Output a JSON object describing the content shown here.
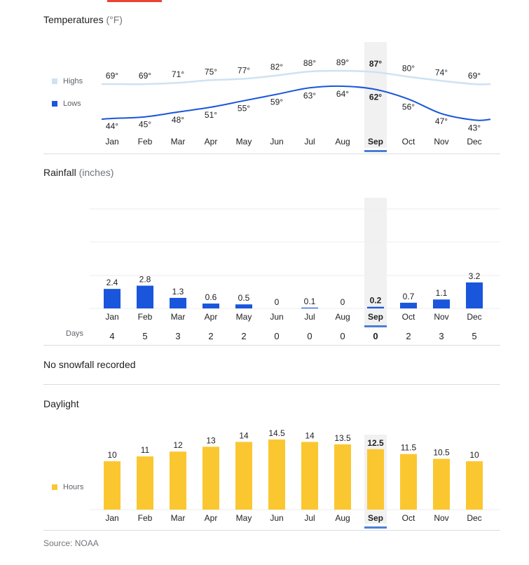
{
  "months": [
    "Jan",
    "Feb",
    "Mar",
    "Apr",
    "May",
    "Jun",
    "Jul",
    "Aug",
    "Sep",
    "Oct",
    "Nov",
    "Dec"
  ],
  "selected_month": "Sep",
  "colors": {
    "highs": "#cfe2f3",
    "lows": "#1a56db",
    "rain": "#1a56db",
    "daylight": "#fbc731",
    "selected_band": "#f1f1f1",
    "selected_marker": "#4a7fd6",
    "divider": "#dadce0"
  },
  "temperature": {
    "title": "Temperatures",
    "unit": "(°F)",
    "legend_highs": "Highs",
    "legend_lows": "Lows",
    "highs": [
      "69°",
      "69°",
      "71°",
      "75°",
      "77°",
      "82°",
      "88°",
      "89°",
      "87°",
      "80°",
      "74°",
      "69°"
    ],
    "lows": [
      "44°",
      "45°",
      "48°",
      "51°",
      "55°",
      "59°",
      "63°",
      "64°",
      "62°",
      "56°",
      "47°",
      "43°"
    ]
  },
  "rainfall": {
    "title": "Rainfall",
    "unit": "(inches)",
    "values": [
      "2.4",
      "2.8",
      "1.3",
      "0.6",
      "0.5",
      "0",
      "0.1",
      "0",
      "0.2",
      "0.7",
      "1.1",
      "3.2"
    ],
    "days_label": "Days",
    "days": [
      "4",
      "5",
      "3",
      "2",
      "2",
      "0",
      "0",
      "0",
      "0",
      "2",
      "3",
      "5"
    ]
  },
  "snow": {
    "text": "No snowfall recorded"
  },
  "daylight": {
    "title": "Daylight",
    "legend_hours": "Hours",
    "values": [
      "10",
      "11",
      "12",
      "13",
      "14",
      "14.5",
      "14",
      "13.5",
      "12.5",
      "11.5",
      "10.5",
      "10"
    ]
  },
  "source": "Source: NOAA",
  "chart_data": [
    {
      "type": "line",
      "title": "Temperatures (°F)",
      "categories": [
        "Jan",
        "Feb",
        "Mar",
        "Apr",
        "May",
        "Jun",
        "Jul",
        "Aug",
        "Sep",
        "Oct",
        "Nov",
        "Dec"
      ],
      "series": [
        {
          "name": "Highs",
          "values": [
            69,
            69,
            71,
            75,
            77,
            82,
            88,
            89,
            87,
            80,
            74,
            69
          ]
        },
        {
          "name": "Lows",
          "values": [
            44,
            45,
            48,
            51,
            55,
            59,
            63,
            64,
            62,
            56,
            47,
            43
          ]
        }
      ],
      "ylabel": "°F"
    },
    {
      "type": "bar",
      "title": "Rainfall (inches)",
      "categories": [
        "Jan",
        "Feb",
        "Mar",
        "Apr",
        "May",
        "Jun",
        "Jul",
        "Aug",
        "Sep",
        "Oct",
        "Nov",
        "Dec"
      ],
      "values": [
        2.4,
        2.8,
        1.3,
        0.6,
        0.5,
        0,
        0.1,
        0,
        0.2,
        0.7,
        1.1,
        3.2
      ],
      "ylabel": "inches",
      "ylim": [
        0,
        12
      ]
    },
    {
      "type": "table",
      "title": "Rainfall days",
      "categories": [
        "Jan",
        "Feb",
        "Mar",
        "Apr",
        "May",
        "Jun",
        "Jul",
        "Aug",
        "Sep",
        "Oct",
        "Nov",
        "Dec"
      ],
      "values": [
        4,
        5,
        3,
        2,
        2,
        0,
        0,
        0,
        0,
        2,
        3,
        5
      ]
    },
    {
      "type": "bar",
      "title": "Daylight",
      "categories": [
        "Jan",
        "Feb",
        "Mar",
        "Apr",
        "May",
        "Jun",
        "Jul",
        "Aug",
        "Sep",
        "Oct",
        "Nov",
        "Dec"
      ],
      "values": [
        10,
        11,
        12,
        13,
        14,
        14.5,
        14,
        13.5,
        12.5,
        11.5,
        10.5,
        10
      ],
      "ylabel": "Hours"
    }
  ]
}
